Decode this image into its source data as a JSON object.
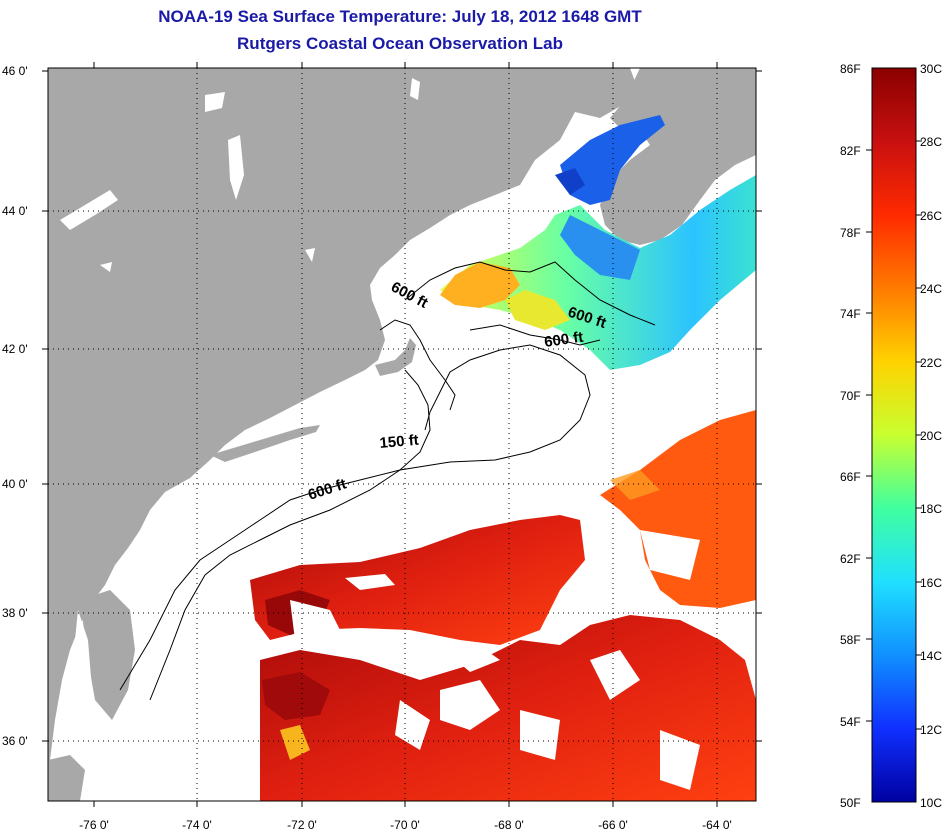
{
  "title_line1": "NOAA-19 Sea Surface Temperature:  July 18, 2012 1648 GMT",
  "title_line2": "Rutgers Coastal Ocean Observation Lab",
  "latitude_labels": [
    "46 0'",
    "44 0'",
    "42 0'",
    "40 0'",
    "38 0'",
    "36 0'"
  ],
  "longitude_labels": [
    "-76 0'",
    "-74 0'",
    "-72 0'",
    "-70 0'",
    "-68 0'",
    "-66 0'",
    "-64 0'"
  ],
  "contour_labels": [
    "600 ft",
    "600 ft",
    "600 ft",
    "150 ft",
    "600 ft"
  ],
  "colorbar": {
    "fahrenheit": [
      "86F",
      "82F",
      "78F",
      "74F",
      "70F",
      "66F",
      "62F",
      "58F",
      "54F",
      "50F"
    ],
    "celsius": [
      "30C",
      "28C",
      "26C",
      "24C",
      "22C",
      "20C",
      "18C",
      "16C",
      "14C",
      "12C",
      "10C"
    ],
    "stops": [
      "#8b0000",
      "#c81010",
      "#ff2a00",
      "#ff7a00",
      "#ffd200",
      "#c8ff30",
      "#40ffa0",
      "#20e0ff",
      "#1090ff",
      "#1030ff",
      "#0000a0"
    ]
  },
  "colors": {
    "land": "#a8a8a8",
    "ocean_nodata": "#ffffff",
    "title": "#1a1aa6"
  }
}
